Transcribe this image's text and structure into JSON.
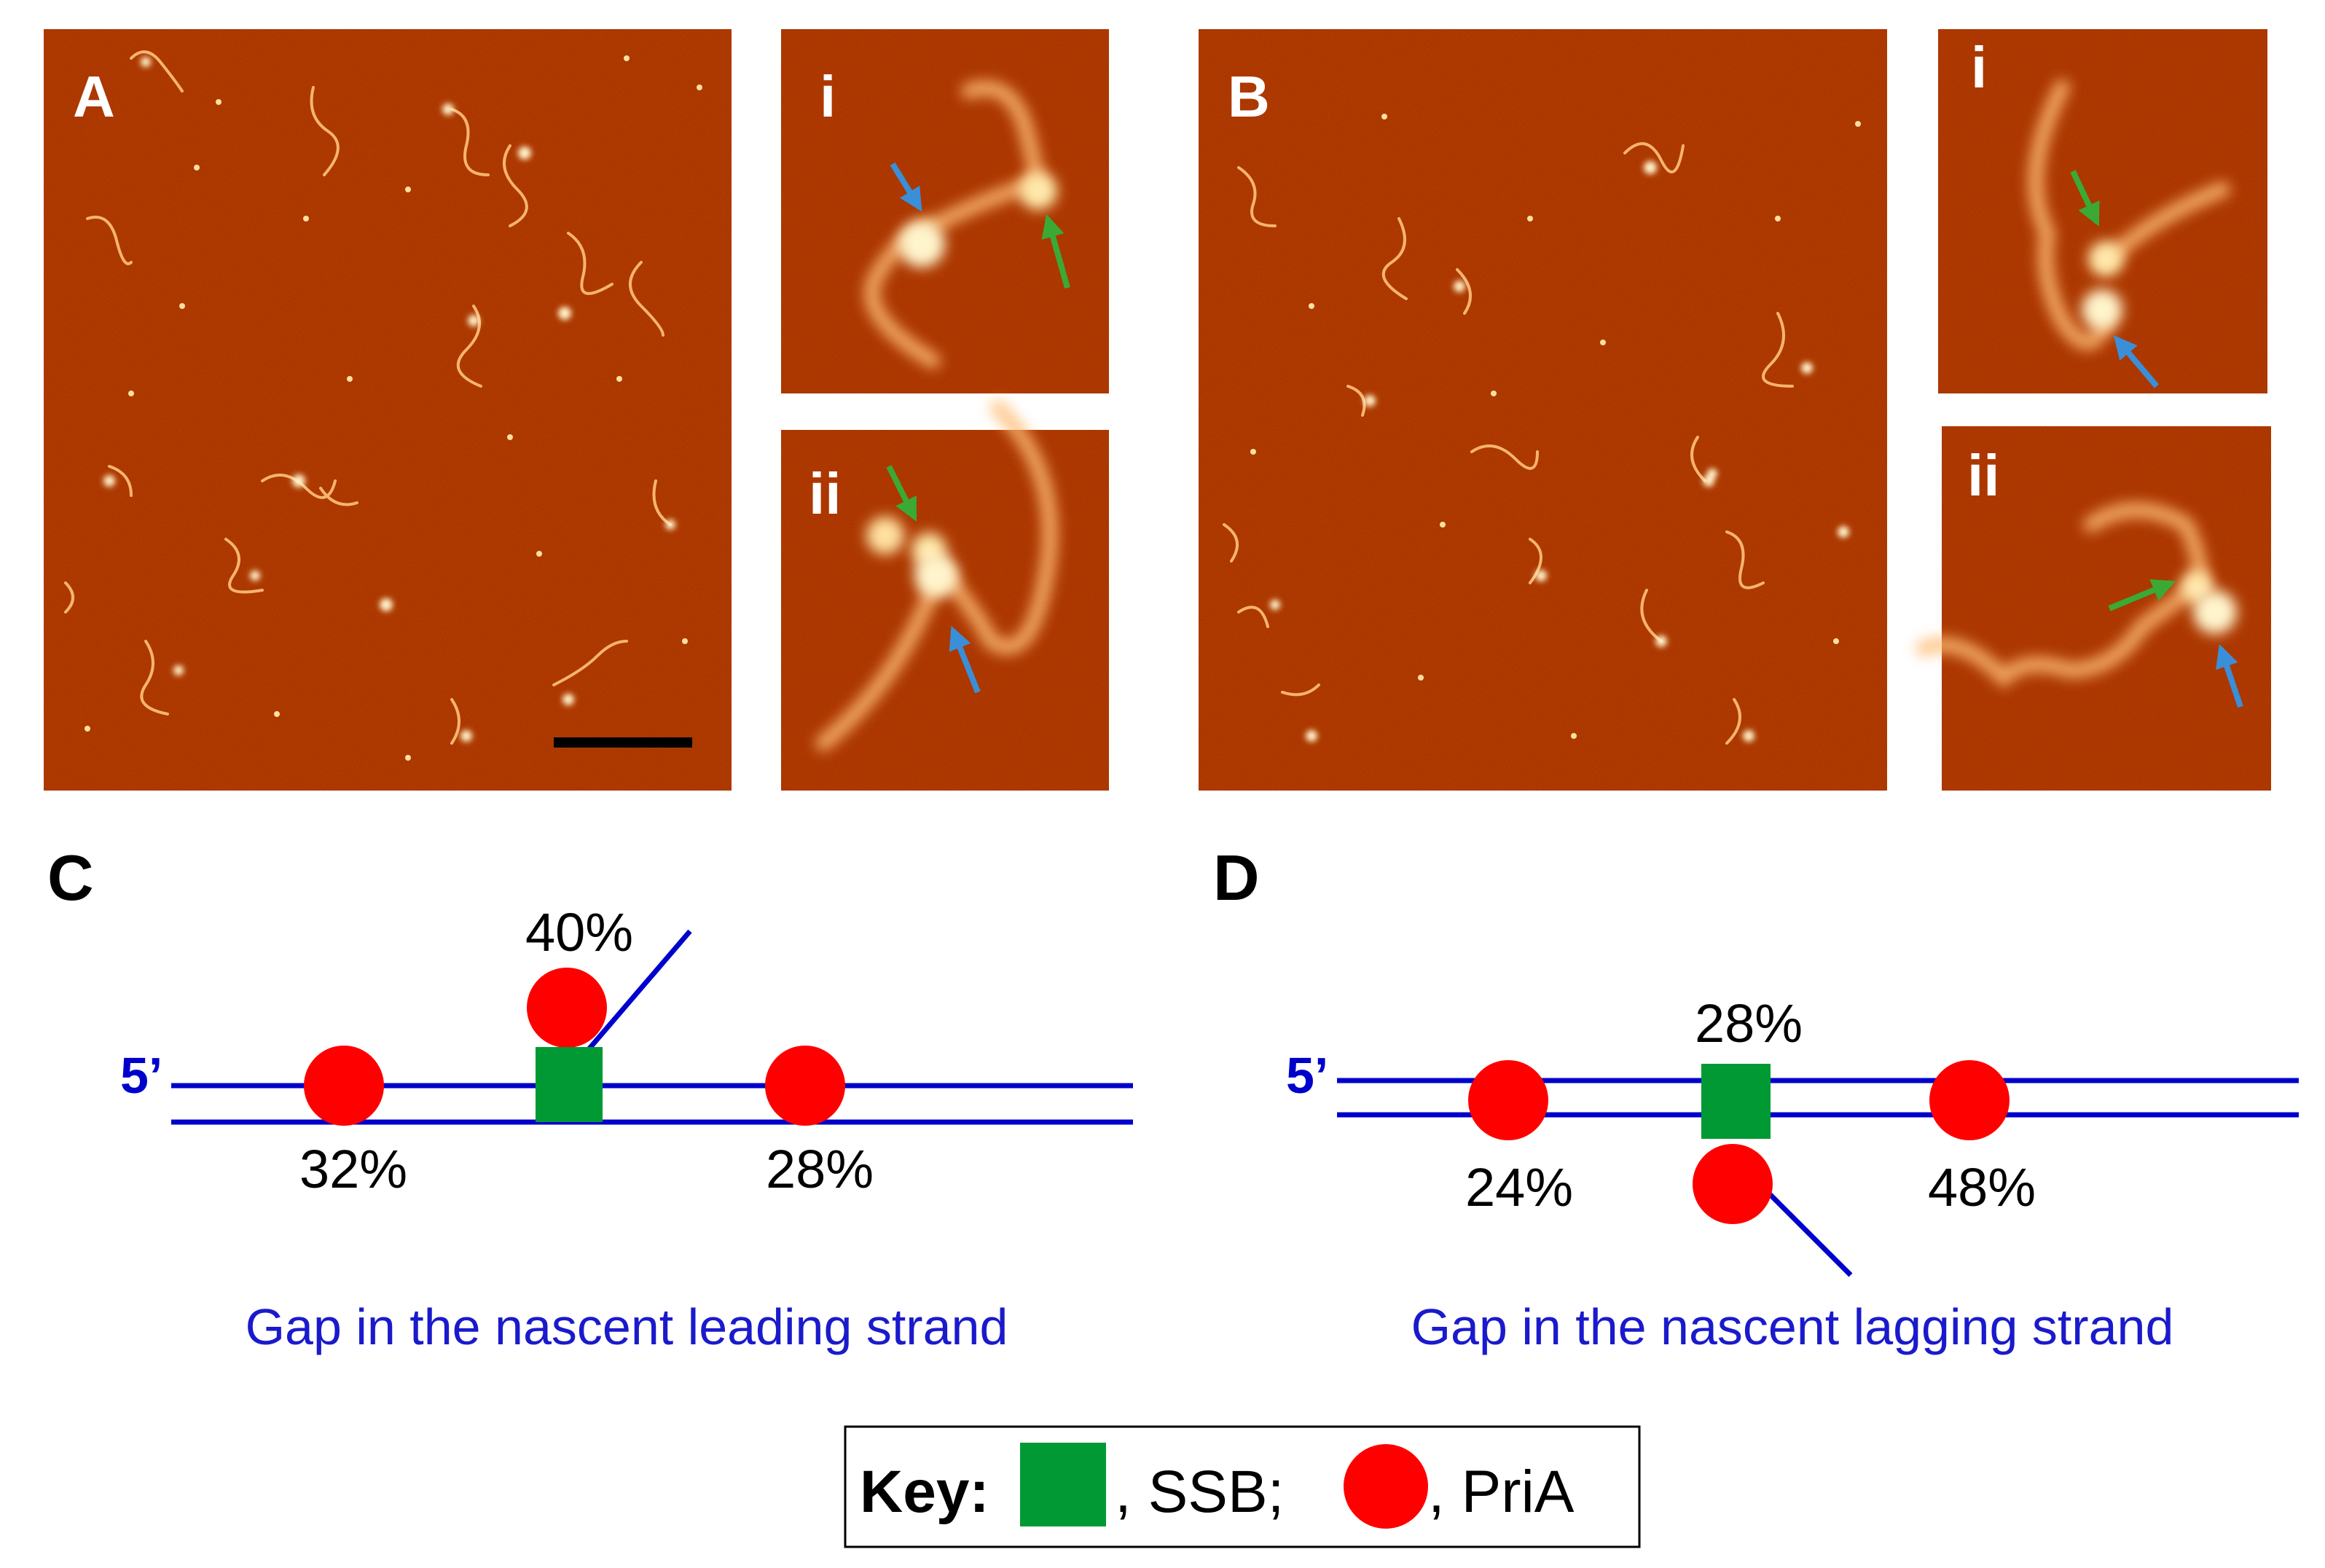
{
  "panels": {
    "A": {
      "label": "A",
      "inset_labels": [
        "i",
        "ii"
      ]
    },
    "B": {
      "label": "B",
      "inset_labels": [
        "i",
        "ii"
      ]
    },
    "C": {
      "label": "C",
      "strand_label": "5’",
      "percent_pria_left": "32%",
      "percent_ssb_top": "40%",
      "percent_pria_right": "28%",
      "caption": "Gap in the nascent leading strand"
    },
    "D": {
      "label": "D",
      "strand_label": "5’",
      "percent_pria_left": "24%",
      "percent_ssb_top": "28%",
      "percent_pria_right": "48%",
      "caption": "Gap in the nascent lagging strand"
    }
  },
  "key": {
    "title": "Key:",
    "ssb_text": ", SSB;",
    "pria_text": ", PriA"
  },
  "colors": {
    "afm_background": "#a83000",
    "afm_feature": "#ffd080",
    "dna_strand": "#0000cc",
    "ssb": "#009933",
    "pria": "#ff0000",
    "arrow_blue": "#3a8fd8",
    "arrow_green": "#3aaa35",
    "caption_text": "#1a1acc"
  }
}
